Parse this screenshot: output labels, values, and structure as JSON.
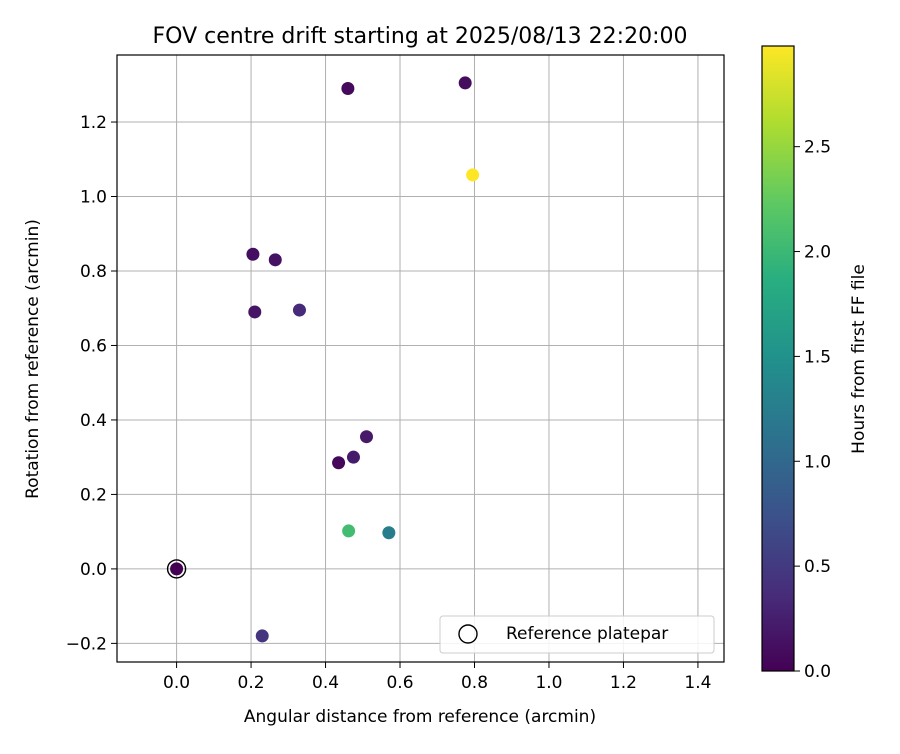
{
  "chart_data": {
    "type": "scatter",
    "title": "FOV centre drift starting at 2025/08/13 22:20:00",
    "xlabel": "Angular distance from reference (arcmin)",
    "ylabel": "Rotation from reference (arcmin)",
    "xlim": [
      -0.16,
      1.47
    ],
    "ylim": [
      -0.25,
      1.38
    ],
    "x_ticks": [
      0.0,
      0.2,
      0.4,
      0.6,
      0.8,
      1.0,
      1.2,
      1.4
    ],
    "y_ticks": [
      -0.2,
      0.0,
      0.2,
      0.4,
      0.6,
      0.8,
      1.0,
      1.2
    ],
    "grid": true,
    "legend": {
      "placement": "lower-right",
      "entries": [
        "Reference platepar"
      ]
    },
    "colorbar": {
      "label": "Hours from first FF file",
      "range": [
        0.0,
        2.98
      ],
      "ticks": [
        0.0,
        0.5,
        1.0,
        1.5,
        2.0,
        2.5
      ],
      "colormap": "viridis"
    },
    "points": [
      {
        "x": 0.0,
        "y": 0.0,
        "hours": 0.0
      },
      {
        "x": 0.46,
        "y": 1.29,
        "hours": 0.08
      },
      {
        "x": 0.775,
        "y": 1.305,
        "hours": 0.1
      },
      {
        "x": 0.205,
        "y": 0.845,
        "hours": 0.12
      },
      {
        "x": 0.265,
        "y": 0.83,
        "hours": 0.14
      },
      {
        "x": 0.21,
        "y": 0.69,
        "hours": 0.16
      },
      {
        "x": 0.33,
        "y": 0.695,
        "hours": 0.35
      },
      {
        "x": 0.51,
        "y": 0.355,
        "hours": 0.2
      },
      {
        "x": 0.475,
        "y": 0.3,
        "hours": 0.22
      },
      {
        "x": 0.435,
        "y": 0.285,
        "hours": 0.05
      },
      {
        "x": 0.23,
        "y": -0.18,
        "hours": 0.45
      },
      {
        "x": 0.57,
        "y": 0.097,
        "hours": 1.25
      },
      {
        "x": 0.462,
        "y": 0.102,
        "hours": 2.05
      },
      {
        "x": 0.795,
        "y": 1.058,
        "hours": 2.98
      }
    ],
    "reference_point": {
      "x": 0.0,
      "y": 0.0
    }
  }
}
